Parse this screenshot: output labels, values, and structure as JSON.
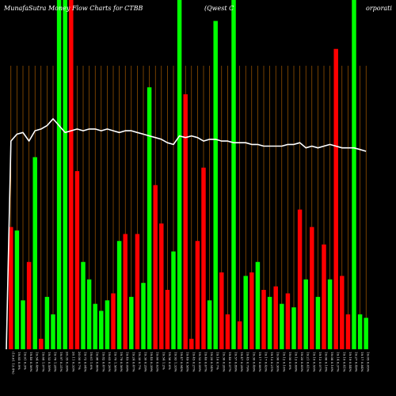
{
  "header": {
    "left": "MunafaSutra  Money Flow  Charts for CTBB",
    "middle": "(Qwest C",
    "right": "orporati"
  },
  "colors": {
    "background": "#000000",
    "up": "#00ff00",
    "down": "#ff0000",
    "grid": "#ff8c00",
    "line": "#ffffff"
  },
  "chart_data": {
    "type": "bar",
    "title": "MunafaSutra  Money Flow  Charts for CTBB (Qwest Corporati",
    "categories": [
      "02 Fri",
      "05 Mon",
      "06 Tue",
      "07 Wed",
      "08 Thu",
      "09 Fri",
      "12 Mon",
      "13 Tue",
      "14 Wed",
      "15 Thu",
      "16 Fri",
      "20 Tue",
      "21 Wed",
      "22 Thu",
      "23 Fri",
      "26 Mon",
      "27 Tue",
      "28 Wed",
      "29 Thu",
      "01 Fri",
      "04 Mon",
      "05 Tue",
      "06 Wed",
      "07 Thu",
      "08 Fri",
      "11 Mon",
      "12 Tue",
      "13 Wed",
      "14 Thu",
      "15 Fri",
      "18 Mon",
      "19 Tue",
      "20 Wed",
      "21 Thu",
      "22 Fri",
      "25 Mon",
      "26 Tue",
      "27 Wed",
      "28 Thu",
      "29 Fri",
      "02 Mon",
      "03 Tue",
      "05 Thu",
      "06 Fri",
      "09 Mon",
      "10 Tue",
      "11 Wed",
      "12 Thu",
      "13 Fri",
      "16 Mon",
      "17 Tue",
      "18 Wed",
      "19 Thu",
      "20 Fri",
      "23 Mon",
      "24 Tue",
      "25 Wed",
      "26 Thu",
      "27 Fri",
      "30 Mon"
    ],
    "x_tick_labels": [
      "(19.61 13.4%)",
      "19.85 0.9%",
      "19.91 0.3%",
      "19.40 0.56%",
      "19.54 0.48%",
      "19.68 1.07%",
      "19.53 0.59%",
      "19.76 1.28%",
      "19.97 0.31%",
      "20.35 0.39%",
      "20.11 0.33%",
      "20.00 0.7%",
      "19.72 0.04%",
      "19.61 1.6%",
      "19.98 0.86%",
      "19.82 0.47%",
      "19.65 0.26%",
      "19.70 1.56%",
      "19.79 0.56%",
      "19.45 0.09%",
      "19.24 0.47%",
      "19.30 0.7%",
      "19.30 0.29%",
      "19.45 0.39%",
      "19.60 0.63%",
      "19.54 1.2%",
      "19.56 0.6%",
      "19.93 1.33%",
      "19.47 0.94%",
      "19.49 0.58%",
      "19.45 0.27%",
      "19.53 0.09%",
      "19.40 0.67%",
      "19.20 0.54%",
      "19.16 0.7%",
      "19.36 0.26%",
      "19.40 0.07%",
      "19.57 0.89%",
      "19.47 0.28%",
      "19.45 0.79%",
      "19.30 0.49%",
      "19.17 0.66%",
      "19.17 0.43%",
      "19.13 0.21%",
      "19.06 0.36%",
      "19.12 0.16%",
      "19.00 0.6%",
      "19.13 0.69%",
      "19.20 0.85%",
      "19.21 0.41%",
      "19.10 0.55%",
      "19.13 0.07%",
      "19.06 0.18%",
      "19.08 0.16%",
      "19.14 0.37%",
      "19.10 0.41%",
      "19.19 0.44%",
      "19.27 0.49%",
      "19.17 0.84%",
      "19.05 0.05%"
    ],
    "series": [
      {
        "values": [
          0.35,
          0.34,
          0.14,
          0.25,
          0.55,
          0.03,
          0.15,
          0.1,
          1.0,
          1.0,
          1.0,
          0.51,
          0.25,
          0.2,
          0.13,
          0.11,
          0.14,
          0.16,
          0.31,
          0.33,
          0.15,
          0.33,
          0.19,
          0.75,
          0.47,
          0.36,
          0.17,
          0.28,
          1.0,
          0.73,
          0.03,
          0.31,
          0.52,
          0.14,
          0.94,
          0.22,
          0.1,
          1.0,
          0.08,
          0.21,
          0.22,
          0.25,
          0.17,
          0.15,
          0.18,
          0.13,
          0.16,
          0.12,
          0.4,
          0.2,
          0.35,
          0.15,
          0.3,
          0.2,
          0.86,
          0.21,
          0.1,
          1.0,
          0.1,
          0.09
        ],
        "directions": [
          "d",
          "u",
          "u",
          "d",
          "u",
          "d",
          "u",
          "u",
          "u",
          "u",
          "d",
          "d",
          "u",
          "u",
          "u",
          "u",
          "u",
          "d",
          "u",
          "d",
          "u",
          "d",
          "u",
          "u",
          "d",
          "d",
          "d",
          "u",
          "u",
          "d",
          "d",
          "d",
          "d",
          "u",
          "u",
          "d",
          "d",
          "u",
          "d",
          "u",
          "d",
          "u",
          "d",
          "u",
          "d",
          "u",
          "d",
          "u",
          "d",
          "u",
          "d",
          "u",
          "d",
          "u",
          "d",
          "d",
          "d",
          "u",
          "u",
          "u"
        ]
      },
      {
        "values": [
          0.18,
          0.22,
          0.23,
          0.18,
          0.24,
          0.25,
          0.27,
          0.31,
          0.27,
          0.23,
          0.24,
          0.25,
          0.24,
          0.25,
          0.25,
          0.24,
          0.25,
          0.24,
          0.23,
          0.24,
          0.24,
          0.23,
          0.22,
          0.21,
          0.2,
          0.19,
          0.17,
          0.16,
          0.21,
          0.2,
          0.21,
          0.2,
          0.18,
          0.19,
          0.19,
          0.18,
          0.18,
          0.17,
          0.17,
          0.17,
          0.16,
          0.16,
          0.15,
          0.15,
          0.15,
          0.15,
          0.16,
          0.16,
          0.17,
          0.14,
          0.15,
          0.14,
          0.15,
          0.16,
          0.15,
          0.14,
          0.14,
          0.14,
          0.13,
          0.12
        ]
      }
    ],
    "ylim": [
      0,
      1
    ],
    "grid": true,
    "legend": "none"
  }
}
